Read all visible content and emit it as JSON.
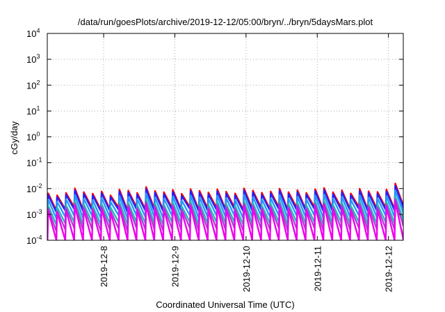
{
  "chart_data": {
    "type": "line",
    "title": "/data/run/goesPlots/archive/2019-12-12/05:00/bryn/../bryn/5daysMars.plot",
    "xlabel": "Coordinated Universal Time (UTC)",
    "ylabel": "cGy/day",
    "yscale": "log",
    "ylim": [
      0.0001,
      10000
    ],
    "xlim": [
      "2019-12-07T05:00",
      "2019-12-12T05:00"
    ],
    "x_ticks": [
      "2019-12-08T00:00",
      "2019-12-09T00:00",
      "2019-12-10T00:00",
      "2019-12-11T00:00",
      "2019-12-12T00:00"
    ],
    "x_tick_labels": [
      "2019-12-8",
      "2019-12-9",
      "2019-12-10",
      "2019-12-11",
      "2019-12-12"
    ],
    "y_ticks": [
      0.0001,
      0.001,
      0.01,
      0.1,
      1,
      10,
      100,
      1000,
      10000
    ],
    "y_tick_labels": [
      {
        "base": "10",
        "exp": "-4"
      },
      {
        "base": "10",
        "exp": "-3"
      },
      {
        "base": "10",
        "exp": "-2"
      },
      {
        "base": "10",
        "exp": "-1"
      },
      {
        "base": "10",
        "exp": "0"
      },
      {
        "base": "10",
        "exp": "1"
      },
      {
        "base": "10",
        "exp": "2"
      },
      {
        "base": "10",
        "exp": "3"
      },
      {
        "base": "10",
        "exp": "4"
      }
    ],
    "grid": true,
    "legend": "none",
    "sawtooth_period_hours": 3,
    "series": [
      {
        "color": "#ff0000",
        "peaks": [
          0.0042,
          0.0065,
          0.0055,
          0.0068,
          0.0102,
          0.0073,
          0.0064,
          0.0078,
          0.0055,
          0.0092,
          0.0084,
          0.0068,
          0.0115,
          0.0081,
          0.0072,
          0.0089,
          0.0063,
          0.0096,
          0.0082,
          0.0071,
          0.0094,
          0.0076,
          0.0065,
          0.0102,
          0.0084,
          0.0069,
          0.0077,
          0.0099,
          0.0073,
          0.0087,
          0.0068,
          0.0095,
          0.0105,
          0.0072,
          0.0086,
          0.0065,
          0.0098,
          0.0079,
          0.0074,
          0.0092,
          0.0158,
          0.0095,
          0.0084
        ],
        "troughs": [
          0.0021,
          0.0014,
          0.0016,
          0.0019,
          0.0015,
          0.0018,
          0.0015,
          0.0016,
          0.0018,
          0.0014,
          0.0019,
          0.0016,
          0.0017,
          0.0015,
          0.0018,
          0.0016,
          0.0019,
          0.0015,
          0.0017,
          0.0018,
          0.0016,
          0.0019,
          0.0015,
          0.0017,
          0.0018,
          0.0016,
          0.0019,
          0.0015,
          0.0018,
          0.0016,
          0.0019,
          0.0015,
          0.0017,
          0.0018,
          0.0016,
          0.0019,
          0.0015,
          0.0017,
          0.0018,
          0.0016,
          0.0021,
          0.0018,
          0.0019
        ]
      },
      {
        "color": "#2222ff",
        "peaks": [
          0.0036,
          0.0056,
          0.0047,
          0.0058,
          0.0086,
          0.0062,
          0.0054,
          0.0066,
          0.0047,
          0.0078,
          0.0071,
          0.0058,
          0.0097,
          0.0069,
          0.0061,
          0.0075,
          0.0053,
          0.0081,
          0.0069,
          0.006,
          0.0079,
          0.0064,
          0.0055,
          0.0086,
          0.0071,
          0.0059,
          0.0065,
          0.0084,
          0.0062,
          0.0074,
          0.0058,
          0.008,
          0.0089,
          0.0061,
          0.0073,
          0.0055,
          0.0083,
          0.0067,
          0.0063,
          0.0078,
          0.0128,
          0.008,
          0.0071
        ],
        "troughs": [
          0.0018,
          0.0012,
          0.0014,
          0.0016,
          0.0013,
          0.0015,
          0.0013,
          0.0014,
          0.0015,
          0.0012,
          0.0016,
          0.0014,
          0.0014,
          0.0013,
          0.0015,
          0.0014,
          0.0016,
          0.0013,
          0.0014,
          0.0015,
          0.0014,
          0.0016,
          0.0013,
          0.0014,
          0.0015,
          0.0014,
          0.0016,
          0.0013,
          0.0015,
          0.0014,
          0.0016,
          0.0013,
          0.0014,
          0.0015,
          0.0014,
          0.0016,
          0.0013,
          0.0014,
          0.0015,
          0.0014,
          0.0018,
          0.0015,
          0.0016
        ]
      },
      {
        "color": "#2299ff",
        "peaks": [
          0.0024,
          0.0037,
          0.0031,
          0.0039,
          0.0057,
          0.0041,
          0.0036,
          0.0044,
          0.0031,
          0.0052,
          0.0047,
          0.0039,
          0.0065,
          0.0046,
          0.0041,
          0.005,
          0.0035,
          0.0054,
          0.0046,
          0.004,
          0.0053,
          0.0043,
          0.0037,
          0.0057,
          0.0047,
          0.0039,
          0.0043,
          0.0056,
          0.0041,
          0.0049,
          0.0039,
          0.0054,
          0.0059,
          0.0041,
          0.0049,
          0.0037,
          0.0055,
          0.0045,
          0.0042,
          0.0052,
          0.0085,
          0.0054,
          0.0047
        ],
        "troughs": [
          0.0011,
          0.0007,
          0.0008,
          0.0009,
          0.0007,
          0.0009,
          0.0007,
          0.0008,
          0.0009,
          0.0007,
          0.0009,
          0.0008,
          0.0008,
          0.0007,
          0.0009,
          0.0008,
          0.0009,
          0.0007,
          0.0008,
          0.0009,
          0.0008,
          0.0009,
          0.0007,
          0.0008,
          0.0009,
          0.0008,
          0.0009,
          0.0007,
          0.0009,
          0.0008,
          0.0009,
          0.0007,
          0.0008,
          0.0009,
          0.0008,
          0.0009,
          0.0007,
          0.0008,
          0.0009,
          0.0008,
          0.0011,
          0.0009,
          0.0009
        ]
      },
      {
        "color": "#22bbbb",
        "peaks": [
          0.0014,
          0.0022,
          0.0019,
          0.0023,
          0.0034,
          0.0025,
          0.0022,
          0.0026,
          0.0019,
          0.0031,
          0.0028,
          0.0023,
          0.0039,
          0.0027,
          0.0024,
          0.003,
          0.0021,
          0.0032,
          0.0028,
          0.0024,
          0.0032,
          0.0026,
          0.0022,
          0.0034,
          0.0028,
          0.0023,
          0.0026,
          0.0033,
          0.0025,
          0.0029,
          0.0023,
          0.0032,
          0.0035,
          0.0024,
          0.0029,
          0.0022,
          0.0033,
          0.0027,
          0.0025,
          0.0031,
          0.005,
          0.0032,
          0.0028
        ],
        "troughs": [
          0.0006,
          0.0004,
          0.00045,
          0.0005,
          0.0004,
          0.0005,
          0.0004,
          0.00045,
          0.0005,
          0.0004,
          0.0005,
          0.00045,
          0.00045,
          0.0004,
          0.0005,
          0.00045,
          0.0005,
          0.0004,
          0.00045,
          0.0005,
          0.00045,
          0.0005,
          0.0004,
          0.00045,
          0.0005,
          0.00045,
          0.0005,
          0.0004,
          0.0005,
          0.00045,
          0.0005,
          0.0004,
          0.00045,
          0.0005,
          0.00045,
          0.0005,
          0.0004,
          0.00045,
          0.0005,
          0.00045,
          0.0006,
          0.0005,
          0.0005
        ]
      },
      {
        "color": "#aa44cc",
        "peaks": [
          0.0011,
          0.0017,
          0.0014,
          0.0018,
          0.0026,
          0.0019,
          0.0017,
          0.002,
          0.0014,
          0.0024,
          0.0022,
          0.0018,
          0.003,
          0.0021,
          0.0019,
          0.0023,
          0.0016,
          0.0025,
          0.0021,
          0.0018,
          0.0024,
          0.002,
          0.0017,
          0.0026,
          0.0022,
          0.0018,
          0.002,
          0.0026,
          0.0019,
          0.0023,
          0.0018,
          0.0025,
          0.0027,
          0.0019,
          0.0022,
          0.0017,
          0.0026,
          0.0021,
          0.0019,
          0.0024,
          0.0039,
          0.0025,
          0.0022
        ],
        "troughs": [
          0.00035,
          0.00022,
          0.00026,
          0.0003,
          0.00024,
          0.00028,
          0.00023,
          0.00026,
          0.00028,
          0.00022,
          0.0003,
          0.00026,
          0.00027,
          0.00023,
          0.00028,
          0.00026,
          0.0003,
          0.00023,
          0.00027,
          0.00028,
          0.00026,
          0.0003,
          0.00023,
          0.00027,
          0.00028,
          0.00026,
          0.0003,
          0.00023,
          0.00028,
          0.00026,
          0.0003,
          0.00023,
          0.00027,
          0.00028,
          0.00026,
          0.0003,
          0.00023,
          0.00027,
          0.00028,
          0.00026,
          0.00035,
          0.00028,
          0.0003
        ]
      },
      {
        "color": "#ee00ee",
        "peaks": [
          0.0009,
          0.0014,
          0.0012,
          0.0015,
          0.0022,
          0.0016,
          0.0014,
          0.0017,
          0.0012,
          0.002,
          0.0018,
          0.0015,
          0.0025,
          0.0017,
          0.0016,
          0.0019,
          0.0013,
          0.0021,
          0.0018,
          0.0015,
          0.002,
          0.0016,
          0.0014,
          0.0022,
          0.0018,
          0.0015,
          0.0017,
          0.0021,
          0.0016,
          0.0019,
          0.0015,
          0.0021,
          0.0023,
          0.0016,
          0.0019,
          0.0014,
          0.0021,
          0.0017,
          0.0016,
          0.002,
          0.0033,
          0.0021,
          0.0018
        ],
        "troughs": [
          0.0001,
          0.0001,
          0.0001,
          0.0001,
          0.0001,
          0.0001,
          0.0001,
          0.0001,
          0.0001,
          0.0001,
          0.0001,
          0.0001,
          0.0001,
          0.0001,
          0.0001,
          0.0001,
          0.0001,
          0.0001,
          0.0001,
          0.0001,
          0.0001,
          0.0001,
          0.0001,
          0.0001,
          0.0001,
          0.0001,
          0.0001,
          0.0001,
          0.0001,
          0.0001,
          0.0001,
          0.0001,
          0.0001,
          0.0001,
          0.0001,
          0.0001,
          0.0001,
          0.0001,
          0.0001,
          0.0001,
          0.0001,
          0.0001,
          0.0001
        ]
      }
    ]
  }
}
